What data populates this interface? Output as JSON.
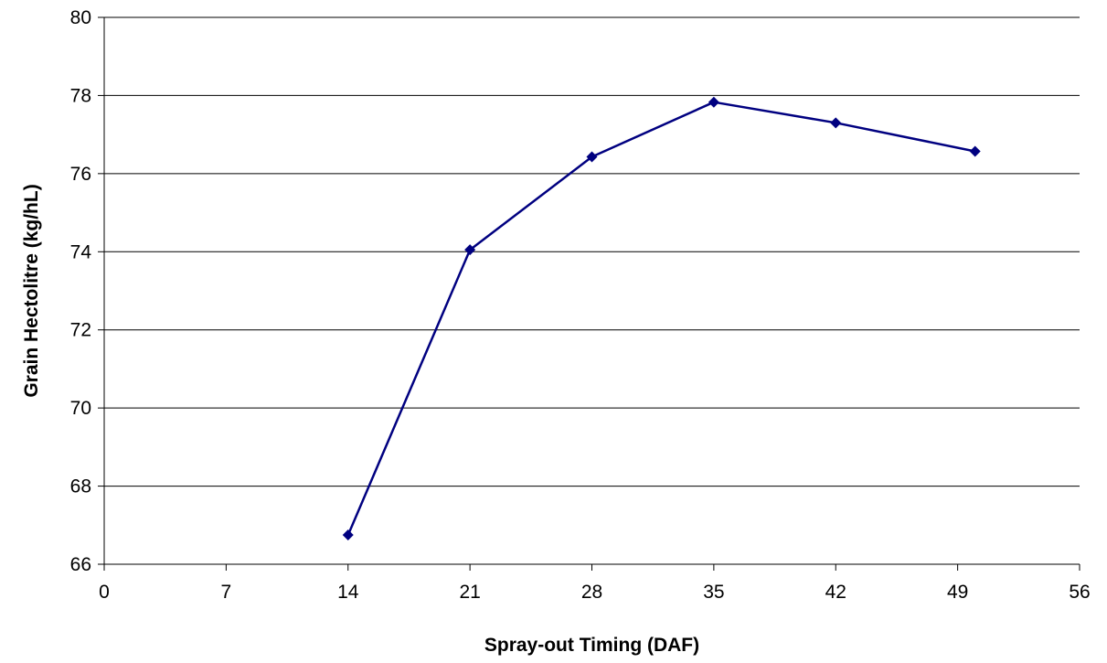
{
  "chart_data": {
    "type": "line",
    "title": "",
    "xlabel": "Spray-out Timing (DAF)",
    "ylabel": "Grain Hectolitre (kg/hL)",
    "xlim": [
      0,
      56
    ],
    "ylim": [
      66,
      80
    ],
    "x_ticks": [
      0,
      7,
      14,
      21,
      28,
      35,
      42,
      49,
      56
    ],
    "y_ticks": [
      66,
      68,
      70,
      72,
      74,
      76,
      78,
      80
    ],
    "grid": "horizontal major gridlines",
    "legend": "none",
    "series": [
      {
        "color": "#000080",
        "marker": "diamond",
        "x": [
          14,
          21,
          28,
          35,
          42,
          50
        ],
        "y": [
          66.75,
          74.05,
          76.43,
          77.83,
          77.3,
          76.57
        ]
      }
    ]
  }
}
